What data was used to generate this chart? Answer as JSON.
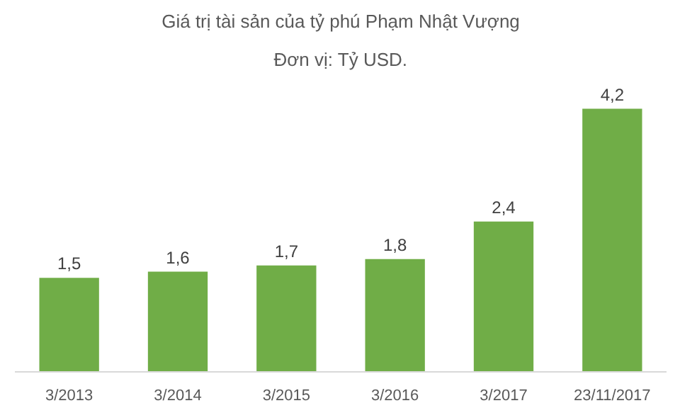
{
  "chart_data": {
    "type": "bar",
    "title": "Giá trị tài sản của tỷ phú Phạm Nhật Vượng",
    "subtitle": "Đơn vị: Tỷ USD.",
    "categories": [
      "3/2013",
      "3/2014",
      "3/2015",
      "3/2016",
      "3/2017",
      "23/11/2017"
    ],
    "values": [
      1.5,
      1.6,
      1.7,
      1.8,
      2.4,
      4.2
    ],
    "value_labels": [
      "1,5",
      "1,6",
      "1,7",
      "1,8",
      "2,4",
      "4,2"
    ],
    "color": "#70ad47"
  }
}
